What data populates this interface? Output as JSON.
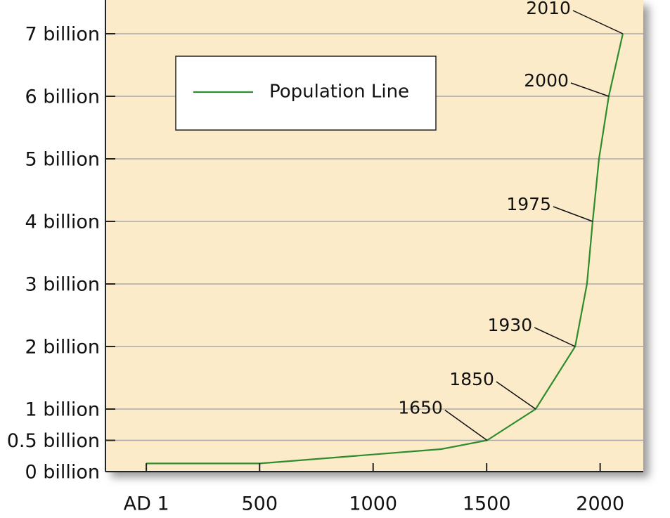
{
  "chart_data": {
    "type": "line",
    "x": [
      1,
      500,
      1300,
      1502,
      1716,
      1890,
      1942,
      1967,
      1995,
      2038,
      2100
    ],
    "series": [
      {
        "name": "Population Line",
        "color": "#2e8b2e",
        "values": [
          0.13,
          0.13,
          0.36,
          0.5,
          1,
          2,
          3,
          4,
          5,
          6,
          7
        ]
      }
    ],
    "xlim": [
      -179,
      2190
    ],
    "ylim": [
      0,
      7.5
    ],
    "xticks": [
      {
        "value": 1,
        "label": "AD 1"
      },
      500,
      1000,
      1500,
      2000
    ],
    "yticks": [
      {
        "value": 0,
        "label": "0 billion"
      },
      {
        "value": 0.5,
        "label": "0.5 billion"
      },
      {
        "value": 1,
        "label": "1 billion"
      },
      {
        "value": 2,
        "label": "2 billion"
      },
      {
        "value": 3,
        "label": "3 billion"
      },
      {
        "value": 4,
        "label": "4 billion"
      },
      {
        "value": 5,
        "label": "5 billion"
      },
      {
        "value": 6,
        "label": "6 billion"
      },
      {
        "value": 7,
        "label": "7 billion"
      }
    ],
    "grid": true,
    "legend": "upper left",
    "annotations": [
      {
        "text": "1650",
        "x": 1502,
        "y": 0.5
      },
      {
        "text": "1850",
        "x": 1716,
        "y": 1
      },
      {
        "text": "1930",
        "x": 1890,
        "y": 2
      },
      {
        "text": "1975",
        "x": 1967,
        "y": 4
      },
      {
        "text": "2000",
        "x": 2038,
        "y": 6
      },
      {
        "text": "2010",
        "x": 2100,
        "y": 7
      }
    ]
  }
}
